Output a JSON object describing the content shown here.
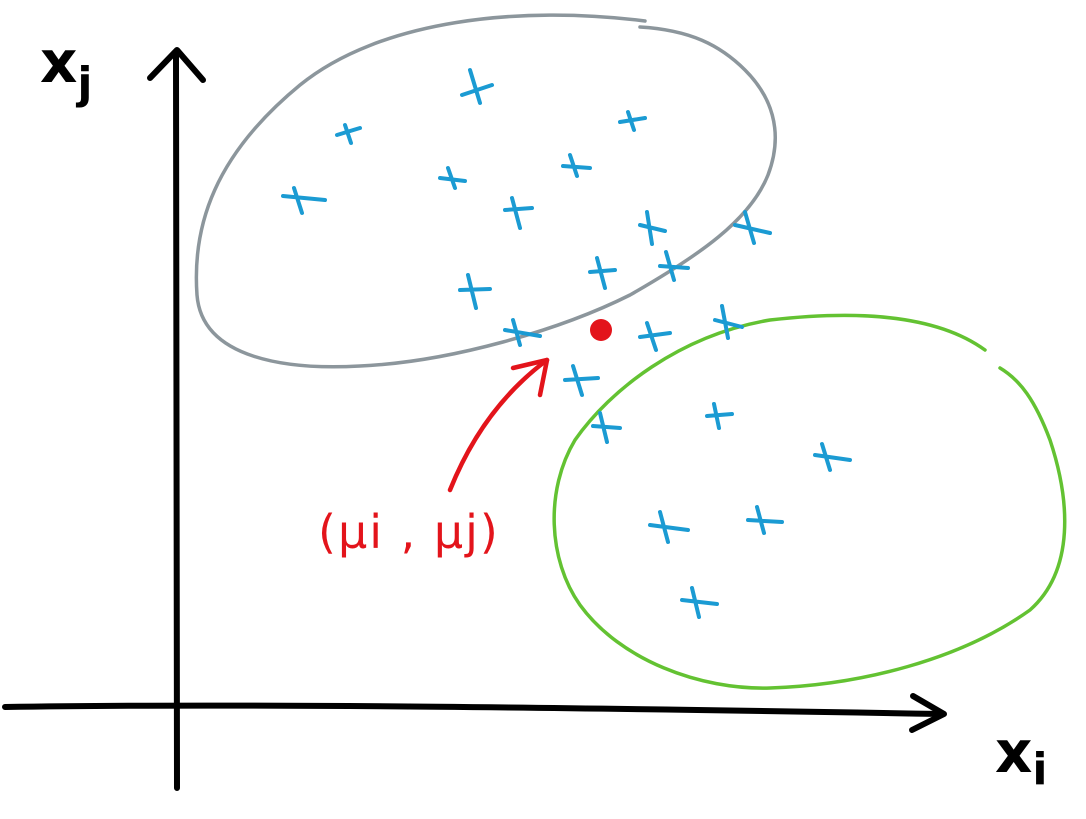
{
  "axes": {
    "x_label_main": "x",
    "x_label_sub": "i",
    "y_label_main": "x",
    "y_label_sub": "j"
  },
  "annotation": {
    "mean_label": "(μi , μj)"
  },
  "colors": {
    "axis": "#000000",
    "points": "#1b9bd3",
    "cluster_gray": "#8c969c",
    "cluster_green": "#63c232",
    "mean": "#e3141b",
    "annotation": "#e3141b",
    "background": "#ffffff"
  }
}
